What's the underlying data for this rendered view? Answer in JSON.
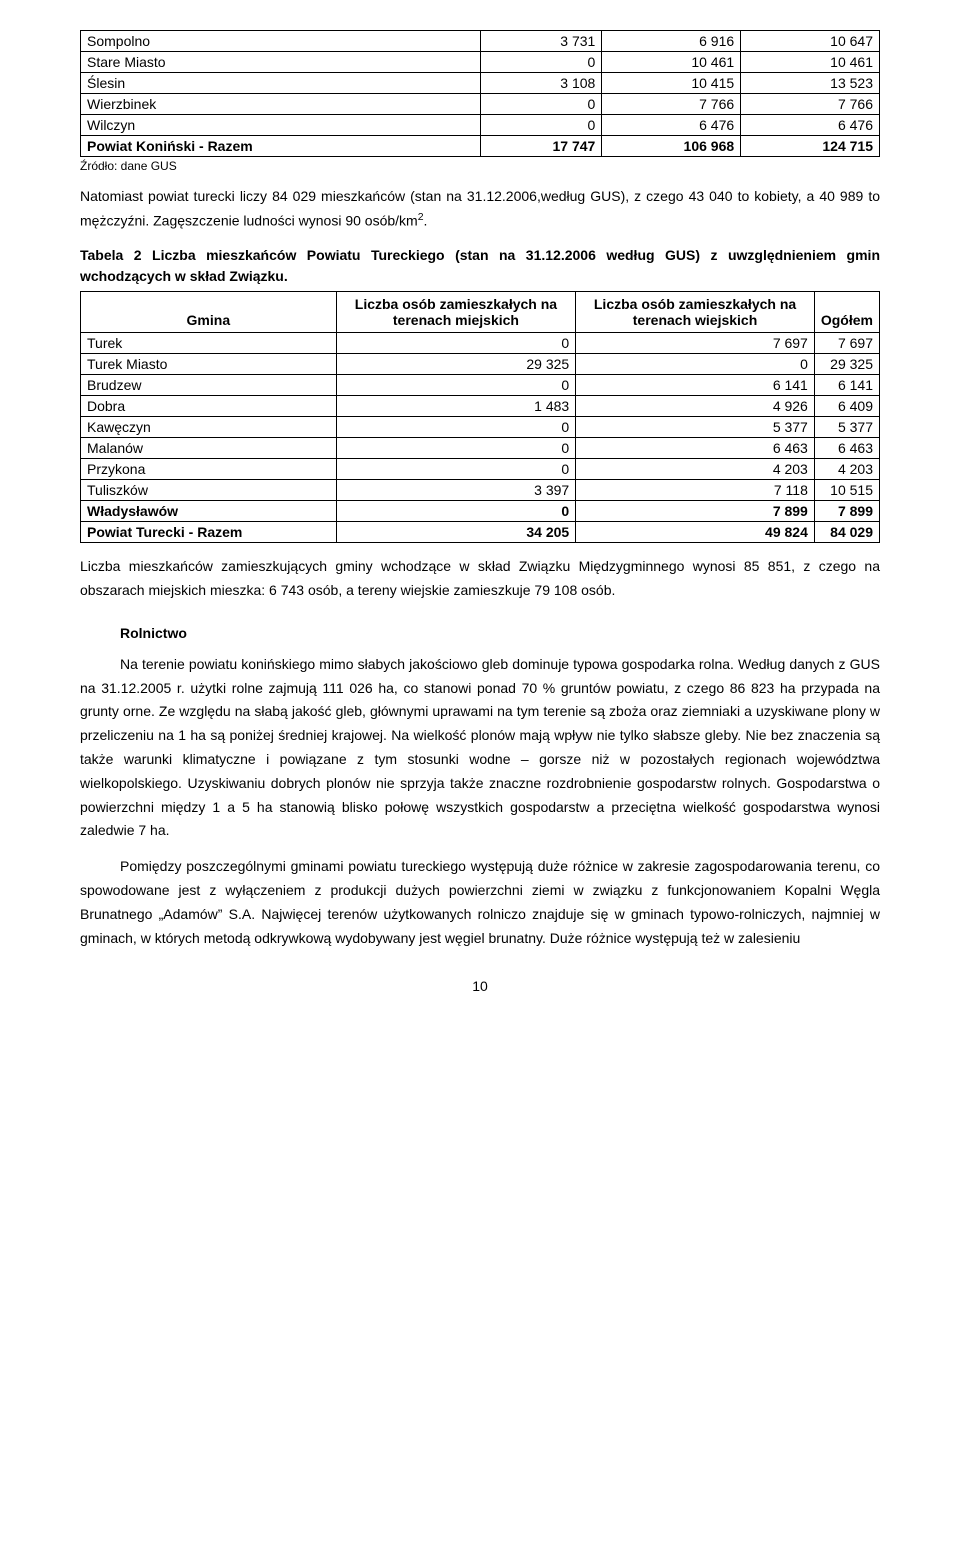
{
  "table1": {
    "rows": [
      {
        "name": "Sompolno",
        "c1": "3 731",
        "c2": "6 916",
        "c3": "10 647",
        "bold": false
      },
      {
        "name": "Stare Miasto",
        "c1": "0",
        "c2": "10 461",
        "c3": "10 461",
        "bold": false
      },
      {
        "name": "Ślesin",
        "c1": "3 108",
        "c2": "10 415",
        "c3": "13 523",
        "bold": false
      },
      {
        "name": "Wierzbinek",
        "c1": "0",
        "c2": "7 766",
        "c3": "7 766",
        "bold": false
      },
      {
        "name": "Wilczyn",
        "c1": "0",
        "c2": "6 476",
        "c3": "6 476",
        "bold": false
      },
      {
        "name": "Powiat Koniński - Razem",
        "c1": "17 747",
        "c2": "106 968",
        "c3": "124 715",
        "bold": true
      }
    ],
    "source_label": "Źródło: dane GUS"
  },
  "para1": "Natomiast powiat turecki liczy 84 029 mieszkańców (stan na 31.12.2006,według GUS), z czego 43 040 to kobiety, a 40 989 to mężczyźni. Zagęszczenie ludności wynosi 90 osób/km",
  "para1_sup": "2",
  "para1_end": ".",
  "caption2": "Tabela 2 Liczba mieszkańców Powiatu Tureckiego (stan na 31.12.2006 według GUS) z uwzględnieniem gmin wchodzących w skład Związku.",
  "table2": {
    "headers": [
      "Gmina",
      "Liczba osób zamieszkałych na terenach miejskich",
      "Liczba osób zamieszkałych na terenach wiejskich",
      "Ogółem"
    ],
    "rows": [
      {
        "name": "Turek",
        "c1": "0",
        "c2": "7 697",
        "c3": "7 697",
        "bold": false
      },
      {
        "name": "Turek Miasto",
        "c1": "29 325",
        "c2": "0",
        "c3": "29 325",
        "bold": false
      },
      {
        "name": "Brudzew",
        "c1": "0",
        "c2": "6 141",
        "c3": "6 141",
        "bold": false
      },
      {
        "name": "Dobra",
        "c1": "1 483",
        "c2": "4 926",
        "c3": "6 409",
        "bold": false
      },
      {
        "name": "Kawęczyn",
        "c1": "0",
        "c2": "5 377",
        "c3": "5 377",
        "bold": false
      },
      {
        "name": "Malanów",
        "c1": "0",
        "c2": "6 463",
        "c3": "6 463",
        "bold": false
      },
      {
        "name": "Przykona",
        "c1": "0",
        "c2": "4 203",
        "c3": "4 203",
        "bold": false
      },
      {
        "name": "Tuliszków",
        "c1": "3 397",
        "c2": "7 118",
        "c3": "10 515",
        "bold": false
      },
      {
        "name": "Władysławów",
        "c1": "0",
        "c2": "7 899",
        "c3": "7 899",
        "bold": true
      },
      {
        "name": "Powiat Turecki - Razem",
        "c1": "34 205",
        "c2": "49 824",
        "c3": "84 029",
        "bold": true
      }
    ]
  },
  "para2": "Liczba mieszkańców zamieszkujących gminy wchodzące w skład Związku Międzygminnego wynosi 85 851, z czego na obszarach miejskich mieszka: 6 743 osób, a tereny wiejskie zamieszkuje 79 108 osób.",
  "section_head": "Rolnictwo",
  "para3": "Na terenie powiatu konińskiego mimo słabych jakościowo gleb dominuje typowa gospodarka rolna. Według danych z GUS na 31.12.2005 r. użytki rolne zajmują 111 026 ha, co stanowi ponad 70 % gruntów powiatu, z czego 86 823 ha przypada na grunty orne. Ze względu na słabą jakość gleb, głównymi uprawami na tym terenie są zboża oraz ziemniaki a uzyskiwane plony w przeliczeniu na 1 ha są poniżej średniej krajowej. Na wielkość plonów mają wpływ nie tylko słabsze gleby. Nie bez znaczenia są także warunki klimatyczne i powiązane z tym stosunki wodne – gorsze niż w pozostałych regionach województwa wielkopolskiego. Uzyskiwaniu dobrych plonów nie sprzyja także znaczne rozdrobnienie gospodarstw rolnych. Gospodarstwa o powierzchni między 1 a 5 ha stanowią blisko połowę wszystkich gospodarstw a przeciętna wielkość gospodarstwa wynosi zaledwie 7 ha.",
  "para4": "Pomiędzy poszczególnymi gminami powiatu tureckiego występują duże różnice w zakresie zagospodarowania terenu, co spowodowane jest z wyłączeniem z produkcji dużych powierzchni ziemi w związku z funkcjonowaniem Kopalni Węgla Brunatnego „Adamów” S.A. Najwięcej terenów użytkowanych rolniczo znajduje się w gminach typowo-rolniczych, najmniej w gminach, w których metodą odkrywkową wydobywany jest węgiel brunatny. Duże różnice występują też w zalesieniu",
  "page_number": "10"
}
